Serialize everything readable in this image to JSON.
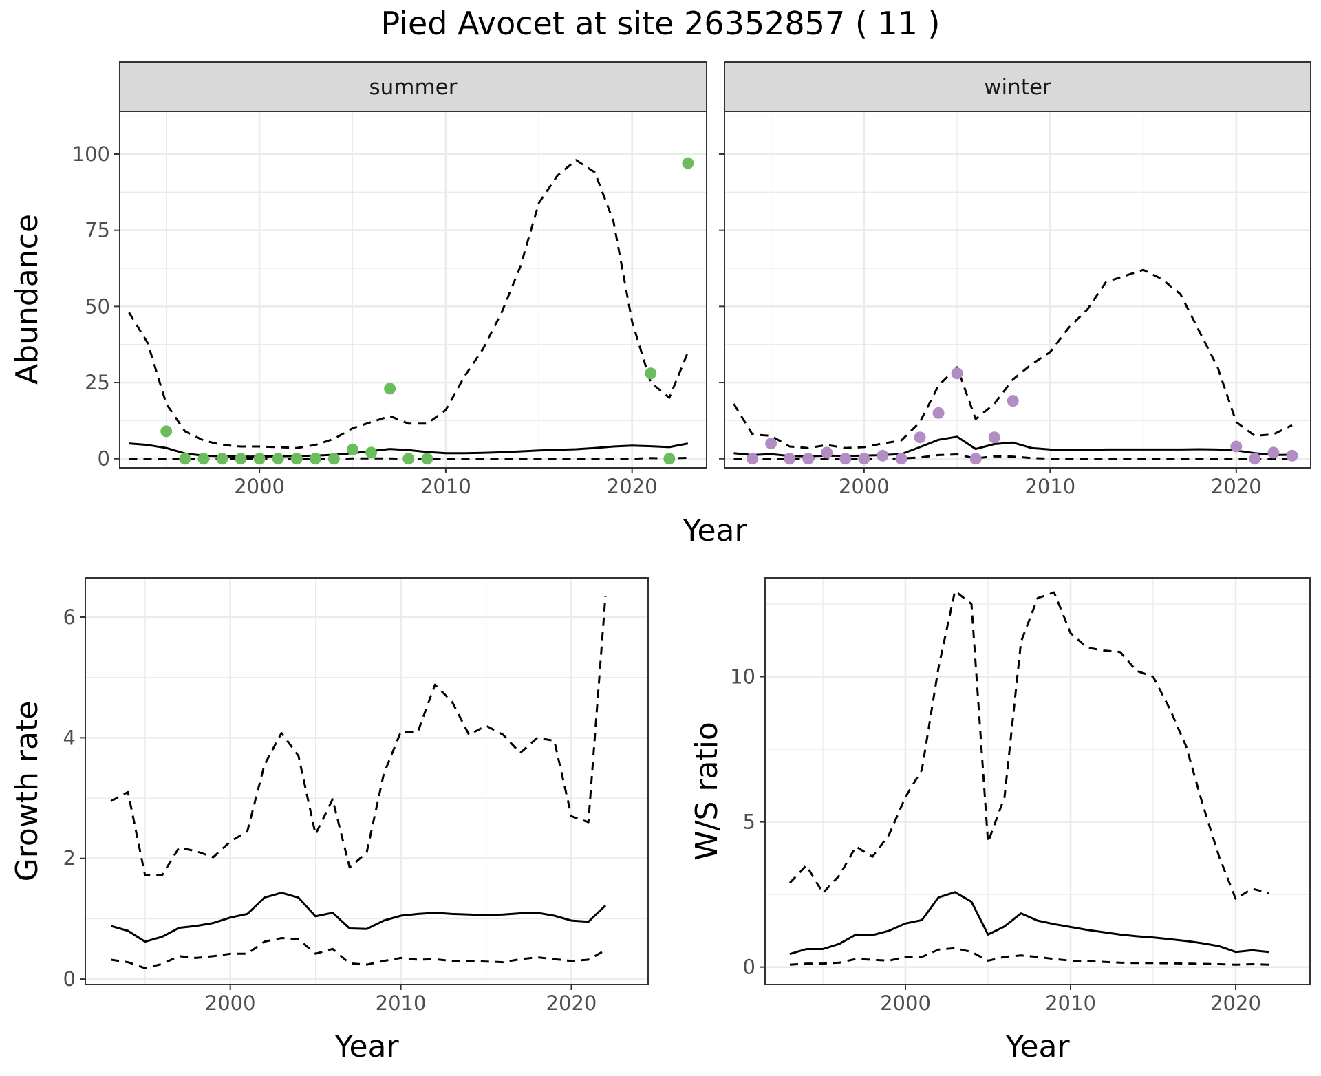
{
  "title": "Pied Avocet at site 26352857 ( 11 )",
  "chart_data": [
    {
      "type": "line",
      "facet": "summer",
      "ylabel": "Abundance",
      "xlabel": "Year",
      "shared_xlabel": "Year",
      "xlim": [
        1992.5,
        2024
      ],
      "ylim": [
        -3,
        114
      ],
      "xticks": [
        2000,
        2010,
        2020
      ],
      "yticks": [
        0,
        25,
        50,
        75,
        100
      ],
      "point_color": "#6abc5c",
      "x": [
        1993,
        1994,
        1995,
        1996,
        1997,
        1998,
        1999,
        2000,
        2001,
        2002,
        2003,
        2004,
        2005,
        2006,
        2007,
        2008,
        2009,
        2010,
        2011,
        2012,
        2013,
        2014,
        2015,
        2016,
        2017,
        2018,
        2019,
        2020,
        2021,
        2022,
        2023
      ],
      "series": [
        {
          "style": "solid",
          "values": [
            5,
            4.5,
            3.5,
            1.7,
            1,
            0.8,
            0.7,
            0.7,
            0.8,
            0.9,
            1,
            1.3,
            1.8,
            2.5,
            3.2,
            2.8,
            2.2,
            1.8,
            1.8,
            1.9,
            2.1,
            2.4,
            2.7,
            2.9,
            3.1,
            3.5,
            4,
            4.3,
            4.1,
            3.8,
            5
          ]
        },
        {
          "style": "dashed",
          "values": [
            48,
            38,
            18,
            9,
            6,
            4.5,
            4,
            4,
            3.8,
            3.5,
            4.5,
            6.5,
            10,
            12,
            14,
            11.5,
            11.5,
            16,
            27,
            36,
            48,
            63,
            84,
            93,
            98,
            94,
            78,
            45,
            25,
            20,
            35
          ]
        },
        {
          "style": "dashed",
          "values": [
            0,
            0,
            0,
            0,
            0,
            0,
            0,
            0,
            0,
            0,
            0,
            0,
            0.1,
            0.1,
            0.1,
            0,
            0,
            0,
            0,
            0,
            0,
            0,
            0,
            0,
            0,
            0,
            0,
            0,
            0.2,
            0.1,
            0.3
          ]
        }
      ],
      "points": {
        "x": [
          1995,
          1996,
          1997,
          1998,
          1999,
          2000,
          2001,
          2002,
          2003,
          2004,
          2005,
          2006,
          2007,
          2008,
          2009,
          2021,
          2022,
          2023
        ],
        "y": [
          9,
          0,
          0,
          0,
          0,
          0,
          0,
          0,
          0,
          0,
          3,
          2,
          23,
          0,
          0,
          28,
          0,
          97
        ]
      }
    },
    {
      "type": "line",
      "facet": "winter",
      "ylabel": "",
      "xlabel": "Year",
      "xlim": [
        1992.5,
        2024
      ],
      "ylim": [
        -3,
        114
      ],
      "xticks": [
        2000,
        2010,
        2020
      ],
      "yticks": [
        0,
        25,
        50,
        75,
        100
      ],
      "point_color": "#b28dc4",
      "x": [
        1993,
        1994,
        1995,
        1996,
        1997,
        1998,
        1999,
        2000,
        2001,
        2002,
        2003,
        2004,
        2005,
        2006,
        2007,
        2008,
        2009,
        2010,
        2011,
        2012,
        2013,
        2014,
        2015,
        2016,
        2017,
        2018,
        2019,
        2020,
        2021,
        2022,
        2023
      ],
      "series": [
        {
          "style": "solid",
          "values": [
            1.8,
            1.2,
            1.5,
            0.9,
            0.8,
            1,
            0.9,
            1,
            1.2,
            1.5,
            3.8,
            6.2,
            7.2,
            3.2,
            4.8,
            5.3,
            3.5,
            3,
            2.8,
            2.8,
            3,
            3,
            3,
            3,
            3,
            3.1,
            3,
            2.7,
            1.8,
            1.2,
            1.3
          ]
        },
        {
          "style": "dashed",
          "values": [
            18,
            8,
            7.5,
            4,
            3.5,
            4.5,
            3.5,
            3.8,
            5,
            6,
            12,
            24,
            30,
            13,
            18,
            26,
            31,
            35,
            43,
            49,
            58,
            60,
            62,
            59,
            54,
            42,
            30,
            12,
            7.5,
            8,
            11
          ]
        },
        {
          "style": "dashed",
          "values": [
            0,
            0,
            0,
            0,
            0,
            0,
            0,
            0,
            0,
            0.1,
            0.4,
            1.2,
            1.4,
            0.1,
            0.8,
            0.7,
            0.2,
            0,
            0,
            0,
            0,
            0,
            0,
            0,
            0,
            0,
            0,
            0,
            0,
            0,
            0
          ]
        }
      ],
      "points": {
        "x": [
          1994,
          1995,
          1996,
          1997,
          1998,
          1999,
          2000,
          2001,
          2002,
          2003,
          2004,
          2005,
          2006,
          2007,
          2008,
          2020,
          2021,
          2022,
          2023
        ],
        "y": [
          0,
          5,
          0,
          0,
          2,
          0,
          0,
          1,
          0,
          7,
          15,
          28,
          0,
          7,
          19,
          4,
          0,
          2,
          1
        ]
      }
    },
    {
      "type": "line",
      "ylabel": "Growth rate",
      "xlabel": "Year",
      "xlim": [
        1991.5,
        2024.5
      ],
      "ylim": [
        -0.09,
        6.65
      ],
      "xticks": [
        2000,
        2010,
        2020
      ],
      "yticks": [
        0,
        2,
        4,
        6
      ],
      "x": [
        1993,
        1994,
        1995,
        1996,
        1997,
        1998,
        1999,
        2000,
        2001,
        2002,
        2003,
        2004,
        2005,
        2006,
        2007,
        2008,
        2009,
        2010,
        2011,
        2012,
        2013,
        2014,
        2015,
        2016,
        2017,
        2018,
        2019,
        2020,
        2021,
        2022
      ],
      "series": [
        {
          "style": "solid",
          "values": [
            0.88,
            0.8,
            0.62,
            0.7,
            0.85,
            0.88,
            0.93,
            1.02,
            1.08,
            1.35,
            1.43,
            1.35,
            1.04,
            1.1,
            0.84,
            0.83,
            0.97,
            1.05,
            1.08,
            1.1,
            1.08,
            1.07,
            1.06,
            1.07,
            1.09,
            1.1,
            1.05,
            0.97,
            0.95,
            1.22
          ]
        },
        {
          "style": "dashed",
          "values": [
            2.95,
            3.1,
            1.72,
            1.72,
            2.18,
            2.12,
            2.02,
            2.28,
            2.45,
            3.55,
            4.08,
            3.7,
            2.4,
            2.98,
            1.85,
            2.1,
            3.4,
            4.1,
            4.1,
            4.88,
            4.6,
            4.05,
            4.2,
            4.05,
            3.75,
            4,
            3.95,
            2.7,
            2.6,
            6.35
          ]
        },
        {
          "style": "dashed",
          "values": [
            0.32,
            0.28,
            0.18,
            0.25,
            0.38,
            0.35,
            0.38,
            0.42,
            0.42,
            0.62,
            0.68,
            0.66,
            0.42,
            0.5,
            0.26,
            0.24,
            0.3,
            0.35,
            0.32,
            0.33,
            0.3,
            0.3,
            0.29,
            0.28,
            0.33,
            0.36,
            0.33,
            0.3,
            0.32,
            0.48
          ]
        }
      ]
    },
    {
      "type": "line",
      "ylabel": "W/S ratio",
      "xlabel": "Year",
      "xlim": [
        1991.5,
        2024.5
      ],
      "ylim": [
        -0.6,
        13.4
      ],
      "xticks": [
        2000,
        2010,
        2020
      ],
      "yticks": [
        0,
        5,
        10
      ],
      "x": [
        1993,
        1994,
        1995,
        1996,
        1997,
        1998,
        1999,
        2000,
        2001,
        2002,
        2003,
        2004,
        2005,
        2006,
        2007,
        2008,
        2009,
        2010,
        2011,
        2012,
        2013,
        2014,
        2015,
        2016,
        2017,
        2018,
        2019,
        2020,
        2021,
        2022
      ],
      "series": [
        {
          "style": "solid",
          "values": [
            0.45,
            0.62,
            0.62,
            0.8,
            1.12,
            1.1,
            1.25,
            1.5,
            1.62,
            2.4,
            2.58,
            2.25,
            1.12,
            1.4,
            1.85,
            1.6,
            1.48,
            1.38,
            1.28,
            1.2,
            1.12,
            1.06,
            1.02,
            0.96,
            0.9,
            0.82,
            0.72,
            0.52,
            0.58,
            0.52
          ]
        },
        {
          "style": "dashed",
          "values": [
            2.9,
            3.5,
            2.55,
            3.15,
            4.15,
            3.8,
            4.55,
            5.85,
            6.8,
            10.3,
            12.95,
            12.5,
            4.3,
            5.85,
            11.2,
            12.7,
            12.9,
            11.5,
            11,
            10.9,
            10.85,
            10.2,
            10,
            8.9,
            7.6,
            5.6,
            3.8,
            2.35,
            2.7,
            2.55
          ]
        },
        {
          "style": "dashed",
          "values": [
            0.08,
            0.12,
            0.12,
            0.15,
            0.28,
            0.25,
            0.22,
            0.35,
            0.35,
            0.6,
            0.65,
            0.52,
            0.22,
            0.35,
            0.4,
            0.35,
            0.28,
            0.22,
            0.2,
            0.18,
            0.15,
            0.14,
            0.14,
            0.13,
            0.12,
            0.11,
            0.1,
            0.08,
            0.1,
            0.08
          ]
        }
      ]
    }
  ]
}
